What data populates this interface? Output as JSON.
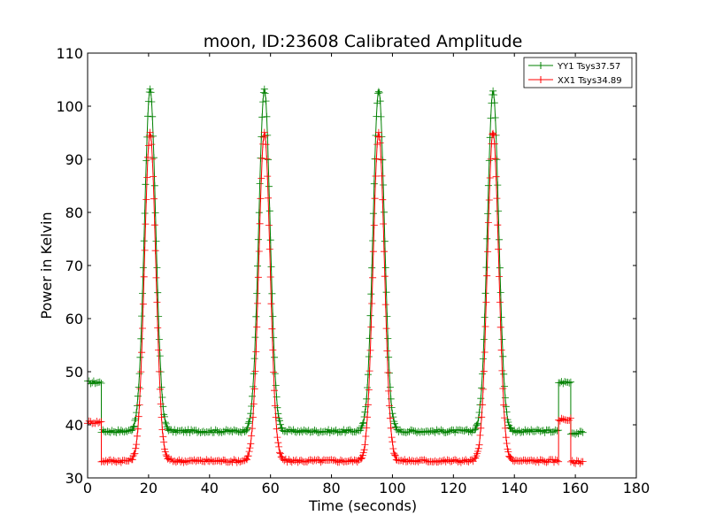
{
  "chart_data": {
    "type": "line",
    "title": "moon, ID:23608 Calibrated Amplitude",
    "xlabel": "Time (seconds)",
    "ylabel": "Power in Kelvin",
    "xlim": [
      0,
      180
    ],
    "ylim": [
      30,
      110
    ],
    "xticks": [
      0,
      20,
      40,
      60,
      80,
      100,
      120,
      140,
      160,
      180
    ],
    "yticks": [
      30,
      40,
      50,
      60,
      70,
      80,
      90,
      100,
      110
    ],
    "grid": false,
    "legend_position": "top-right",
    "marker": "+",
    "series": [
      {
        "name": "YY1 Tsys37.57",
        "color": "#008000",
        "peaks": [
          20.5,
          58,
          95.5,
          133
        ],
        "peak_value": 103,
        "peak_halfwidth": 2.2,
        "baseline_segments": [
          {
            "x": [
              0,
              4.5
            ],
            "y": 48
          },
          {
            "x": [
              4.5,
              154.5
            ],
            "y": 38.8
          },
          {
            "x": [
              154.5,
              158.5
            ],
            "y": 48
          },
          {
            "x": [
              158.5,
              162.5
            ],
            "y": 38.5
          }
        ]
      },
      {
        "name": "XX1 Tsys34.89",
        "color": "#ff0000",
        "peaks": [
          20.5,
          58,
          95.5,
          133
        ],
        "peak_value": 95,
        "peak_halfwidth": 2.2,
        "baseline_segments": [
          {
            "x": [
              0,
              4.5
            ],
            "y": 40.5
          },
          {
            "x": [
              4.5,
              154.5
            ],
            "y": 33.2
          },
          {
            "x": [
              154.5,
              158.5
            ],
            "y": 41
          },
          {
            "x": [
              158.5,
              162.5
            ],
            "y": 33
          }
        ]
      }
    ]
  }
}
